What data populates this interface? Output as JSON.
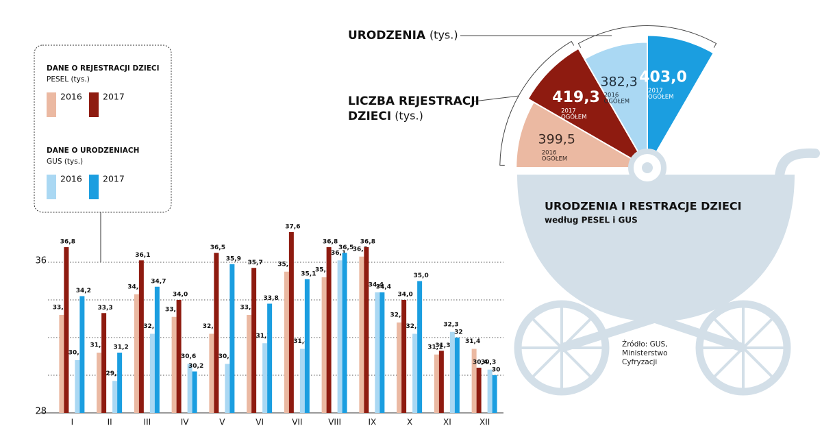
{
  "chart_data": [
    {
      "type": "bar",
      "categories": [
        "I",
        "II",
        "III",
        "IV",
        "V",
        "VI",
        "VII",
        "VIII",
        "IX",
        "X",
        "XI",
        "XII"
      ],
      "legend_groups": [
        {
          "title": "DANE O REJESTRACJI DZIECI",
          "subtitle": "PESEL (tys.)"
        },
        {
          "title": "DANE O URODZENIACH",
          "subtitle": "GUS (tys.)"
        }
      ],
      "series": [
        {
          "name": "2016",
          "color": "#ebb9a2",
          "values": [
            33.2,
            31.2,
            34.3,
            33.1,
            32.2,
            33.2,
            35.5,
            35.2,
            36.3,
            32.8,
            31.1,
            31.4
          ],
          "value_labels": [
            "33,2",
            "31,2",
            "34,3",
            "33,1",
            "32,2",
            "33,2",
            "35,5",
            "35,2",
            "36,3",
            "32,8",
            "31,1",
            "31,4"
          ]
        },
        {
          "name": "2017",
          "color": "#8e1b10",
          "values": [
            36.8,
            33.3,
            36.1,
            34.0,
            36.5,
            35.7,
            37.6,
            36.8,
            36.8,
            34.0,
            31.3,
            30.4
          ],
          "value_labels": [
            "36,8",
            "33,3",
            "36,1",
            "34,0",
            "36,5",
            "35,7",
            "37,6",
            "36,8",
            "36,8",
            "34,0",
            "31,3",
            "30,4"
          ]
        },
        {
          "name": "2016",
          "color": "#aad8f3",
          "values": [
            30.8,
            29.7,
            32.2,
            30.6,
            30.6,
            31.7,
            31.4,
            36.1,
            34.4,
            32.2,
            32.3,
            30.3
          ],
          "value_labels": [
            "30,8",
            "29,7",
            "32,2",
            "30,6",
            "30,6",
            "31,7",
            "31,4",
            "36,1",
            "34,4",
            "32,2",
            "32,3",
            "30,3"
          ]
        },
        {
          "name": "2017",
          "color": "#1b9ee0",
          "values": [
            34.2,
            31.2,
            34.7,
            30.2,
            35.9,
            33.8,
            35.1,
            36.5,
            34.4,
            35.0,
            32,
            30
          ],
          "value_labels": [
            "34,2",
            "31,2",
            "34,7",
            "30,2",
            "35,9",
            "33,8",
            "35,1",
            "36,5",
            "34,4",
            "35,0",
            "32",
            "30"
          ]
        }
      ],
      "ylim": [
        28,
        38
      ],
      "yticks": [
        28,
        36
      ],
      "grid_lines": [
        30,
        32,
        34,
        36
      ],
      "grid": true
    },
    {
      "type": "rose",
      "title": "URODZENIA I RESTRACJE DZIECI",
      "subtitle": "według PESEL i GUS",
      "annotations": [
        {
          "lines": [
            "URODZENIA"
          ],
          "unit": "(tys.)"
        },
        {
          "lines": [
            "LICZBA REJESTRACJI",
            "DZIECI"
          ],
          "unit": "(tys.)"
        }
      ],
      "categories": [
        "2016",
        "2017",
        "2016",
        "2017"
      ],
      "note": "OGÓŁEM",
      "values": [
        399.5,
        419.3,
        382.3,
        403.0
      ],
      "value_labels": [
        "399,5",
        "419,3",
        "382,3",
        "403,0"
      ],
      "colors": [
        "#ebb9a2",
        "#8e1b10",
        "#aad8f3",
        "#1b9ee0"
      ],
      "text_colors": [
        "#3a2a24",
        "#ffffff",
        "#1e2d3a",
        "#ffffff"
      ]
    }
  ],
  "source": "Źródło: GUS, Ministerstwo Cyfryzacji"
}
